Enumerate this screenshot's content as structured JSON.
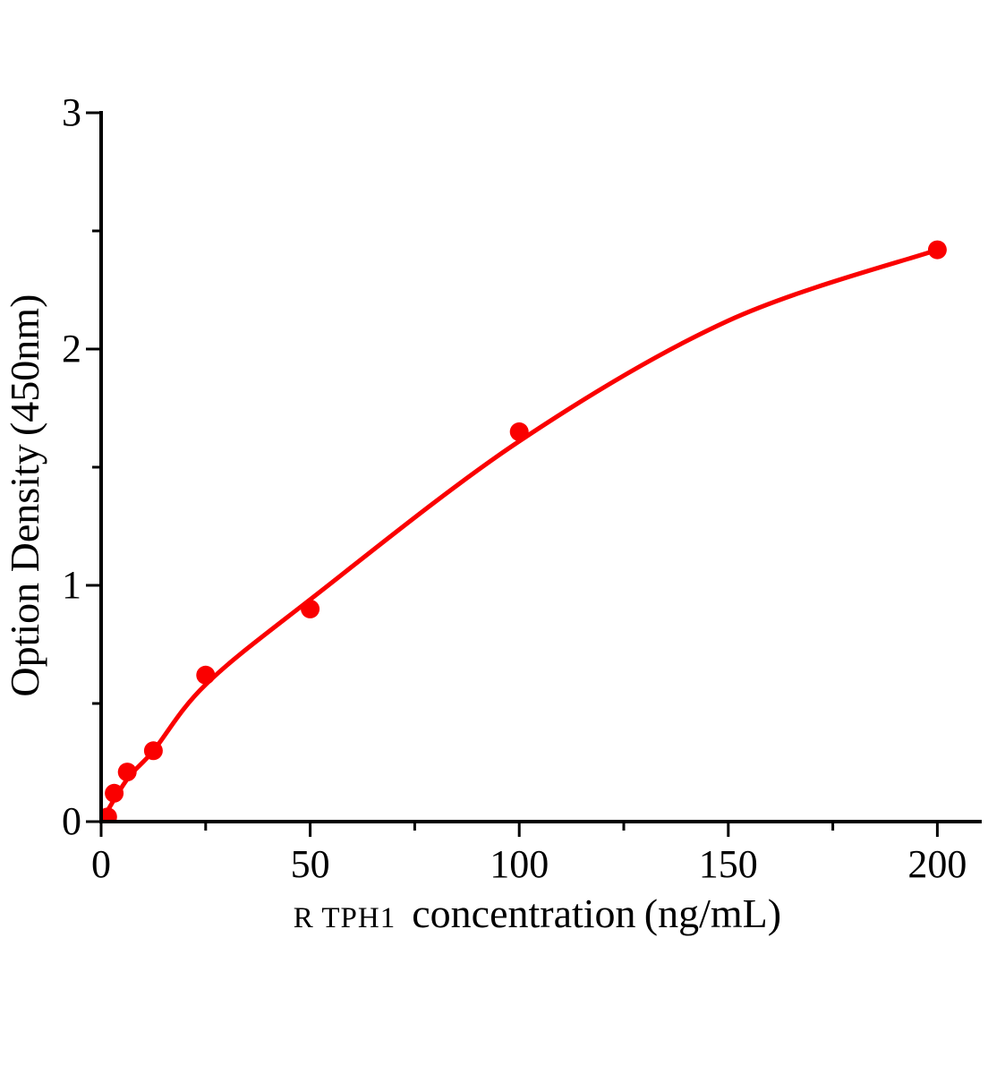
{
  "chart_data": {
    "type": "scatter",
    "title": "",
    "xlabel_small": "R TPH1",
    "xlabel_main": "concentration（ng/mL）",
    "ylabel": "Option Density（450nm）",
    "points": [
      {
        "x": 1.56,
        "y": 0.02
      },
      {
        "x": 3.125,
        "y": 0.12
      },
      {
        "x": 6.25,
        "y": 0.21
      },
      {
        "x": 12.5,
        "y": 0.3
      },
      {
        "x": 25,
        "y": 0.62
      },
      {
        "x": 50,
        "y": 0.9
      },
      {
        "x": 100,
        "y": 1.65
      },
      {
        "x": 200,
        "y": 2.42
      }
    ],
    "fit_curve": [
      {
        "x": 0,
        "y": 0
      },
      {
        "x": 6.25,
        "y": 0.18
      },
      {
        "x": 12.5,
        "y": 0.3
      },
      {
        "x": 25,
        "y": 0.58
      },
      {
        "x": 50,
        "y": 0.94
      },
      {
        "x": 100,
        "y": 1.61
      },
      {
        "x": 150,
        "y": 2.12
      },
      {
        "x": 200,
        "y": 2.42
      }
    ],
    "x_ticks_major": [
      0,
      50,
      100,
      150,
      200
    ],
    "x_ticks_minor": [
      25,
      75,
      125,
      175
    ],
    "y_ticks_major": [
      0,
      1,
      2,
      3
    ],
    "y_ticks_minor": [
      0.5,
      1.5,
      2.5
    ],
    "xlim": [
      0,
      210
    ],
    "ylim": [
      0,
      3
    ],
    "grid": false,
    "legend": "none",
    "colors": {
      "series": "#fa0000",
      "axis": "#000000",
      "background": "#ffffff"
    }
  }
}
